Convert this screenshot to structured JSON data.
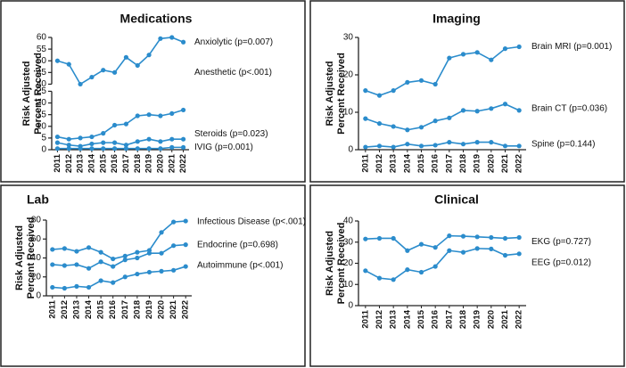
{
  "chart_data": [
    {
      "type": "line",
      "title": "Medications",
      "ylabel": [
        "Risk Adjusted",
        "Percent Received"
      ],
      "categories": [
        "2011",
        "2012",
        "2013",
        "2014",
        "2015",
        "2016",
        "2017",
        "2018",
        "2019",
        "2020",
        "2021",
        "2022"
      ],
      "ylim": [
        0,
        60
      ],
      "ybreak": [
        25,
        40
      ],
      "yticks": [
        0,
        5,
        10,
        15,
        20,
        25,
        40,
        45,
        50,
        55,
        60
      ],
      "series": [
        {
          "name": "Anxiolytic (p=0.007)",
          "color": "#2b8ccc",
          "values": [
            50,
            48.5,
            40,
            43,
            46,
            45,
            51.5,
            48,
            52.5,
            59.5,
            60,
            58
          ]
        },
        {
          "name": "Anesthetic (p<.001)",
          "color": "#2b8ccc",
          "values": [
            5.5,
            4.5,
            5,
            5.5,
            7,
            10.5,
            11,
            14.5,
            15,
            14.5,
            15.5,
            17
          ]
        },
        {
          "name": "Steroids (p=0.023)",
          "color": "#2b8ccc",
          "values": [
            3,
            2,
            1.5,
            2.5,
            3,
            3,
            2,
            3.5,
            4.5,
            3.5,
            4.5,
            4.5
          ]
        },
        {
          "name": "IVIG (p=0.001)",
          "color": "#2b8ccc",
          "values": [
            0.5,
            0.5,
            0.5,
            0.5,
            0.5,
            0.5,
            0.5,
            0.5,
            0.5,
            0.5,
            1,
            1
          ]
        }
      ]
    },
    {
      "type": "line",
      "title": "Imaging",
      "ylabel": [
        "Risk Adjusted",
        "Percent Received"
      ],
      "categories": [
        "2011",
        "2012",
        "2013",
        "2014",
        "2015",
        "2016",
        "2017",
        "2018",
        "2019",
        "2020",
        "2021",
        "2022"
      ],
      "ylim": [
        0,
        30
      ],
      "yticks": [
        0,
        10,
        20,
        30
      ],
      "series": [
        {
          "name": "Brain MRI (p=0.001)",
          "color": "#2b8ccc",
          "values": [
            15.8,
            14.5,
            15.8,
            18,
            18.5,
            17.5,
            24.5,
            25.5,
            26,
            24,
            27,
            27.5
          ]
        },
        {
          "name": "Brain CT (p=0.036)",
          "color": "#2b8ccc",
          "values": [
            8.3,
            7,
            6.2,
            5.3,
            6,
            7.7,
            8.5,
            10.5,
            10.3,
            11,
            12.2,
            10.5
          ]
        },
        {
          "name": "Spine (p=0.144)",
          "color": "#2b8ccc",
          "values": [
            0.7,
            1,
            0.7,
            1.5,
            1,
            1.2,
            2,
            1.5,
            2,
            2,
            1,
            1
          ]
        }
      ]
    },
    {
      "type": "line",
      "title": "Lab",
      "ylabel": [
        "Risk Adjusted",
        "Percent Received"
      ],
      "categories": [
        "2011",
        "2012",
        "2013",
        "2014",
        "2015",
        "2016",
        "2017",
        "2018",
        "2019",
        "2020",
        "2021",
        "2022"
      ],
      "ylim": [
        0,
        80
      ],
      "yticks": [
        0,
        20,
        40,
        60,
        80
      ],
      "series": [
        {
          "name": "Infectious Disease (p<.001)",
          "color": "#2b8ccc",
          "values": [
            49,
            50,
            47,
            51,
            46,
            39,
            42,
            46,
            48,
            67,
            78,
            79
          ]
        },
        {
          "name": "Endocrine (p=0.698)",
          "color": "#2b8ccc",
          "values": [
            33,
            32,
            33,
            29,
            36,
            31,
            38,
            40,
            45,
            45,
            53,
            54
          ]
        },
        {
          "name": "Autoimmune (p<.001)",
          "color": "#2b8ccc",
          "values": [
            9,
            8,
            10,
            9,
            16,
            14,
            20,
            23,
            25,
            26,
            27,
            31
          ]
        }
      ]
    },
    {
      "type": "line",
      "title": "Clinical",
      "ylabel": [
        "Risk Adjusted",
        "Percent Received"
      ],
      "categories": [
        "2011",
        "2012",
        "2013",
        "2014",
        "2015",
        "2016",
        "2017",
        "2018",
        "2019",
        "2020",
        "2021",
        "2022"
      ],
      "ylim": [
        0,
        40
      ],
      "yticks": [
        0,
        10,
        20,
        30,
        40
      ],
      "series": [
        {
          "name": "EKG (p=0.727)",
          "color": "#2b8ccc",
          "values": [
            31.5,
            31.8,
            31.8,
            26,
            29,
            27.5,
            33,
            32.8,
            32.5,
            32.2,
            31.8,
            32.2
          ]
        },
        {
          "name": "EEG (p=0.012)",
          "color": "#2b8ccc",
          "values": [
            16.5,
            13,
            12.3,
            17,
            15.8,
            18.5,
            26,
            25.2,
            27,
            26.8,
            23.8,
            24.5
          ]
        }
      ]
    }
  ]
}
